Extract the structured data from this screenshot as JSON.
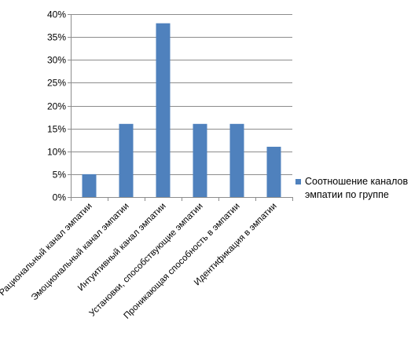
{
  "chart_data": {
    "type": "bar",
    "categories": [
      "Рациональный канал эмпатии",
      "Эмоциональный канал эмпатии",
      "Интуитивный канал эмпатии",
      "Установки, способствующие эмпатии",
      "Проникающая способность в эмпатии",
      "Идентификация в эмпатии"
    ],
    "series": [
      {
        "name": "Соотношение каналов эмпатии по группе",
        "values": [
          5,
          16,
          38,
          16,
          16,
          11
        ],
        "color": "#4F81BD"
      }
    ],
    "yticks": [
      "0%",
      "5%",
      "10%",
      "15%",
      "20%",
      "25%",
      "30%",
      "35%",
      "40%"
    ],
    "ylim": [
      0,
      40
    ],
    "ystep": 5,
    "grid": true,
    "legend": "right"
  }
}
